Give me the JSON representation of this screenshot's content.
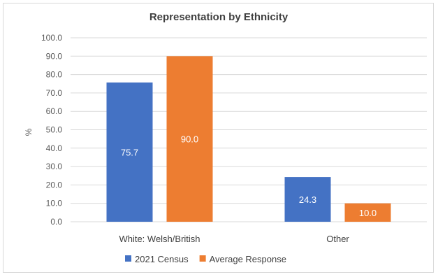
{
  "chart_data": {
    "type": "bar",
    "title": "Representation by Ethnicity",
    "ylabel": "%",
    "xlabel": "",
    "categories": [
      "White: Welsh/British",
      "Other"
    ],
    "series": [
      {
        "name": "2021 Census",
        "values": [
          75.7,
          24.3
        ],
        "labels": [
          "75.7",
          "24.3"
        ],
        "color": "#4472C4"
      },
      {
        "name": "Average Response",
        "values": [
          90.0,
          10.0
        ],
        "labels": [
          "90.0",
          "10.0"
        ],
        "color": "#ED7D31"
      }
    ],
    "ylim": [
      0,
      100
    ],
    "yticks": [
      0,
      10,
      20,
      30,
      40,
      50,
      60,
      70,
      80,
      90,
      100
    ],
    "ytick_labels": [
      "0.0",
      "10.0",
      "20.0",
      "30.0",
      "40.0",
      "50.0",
      "60.0",
      "70.0",
      "80.0",
      "90.0",
      "100.0"
    ],
    "grid": true,
    "legend_position": "bottom"
  }
}
